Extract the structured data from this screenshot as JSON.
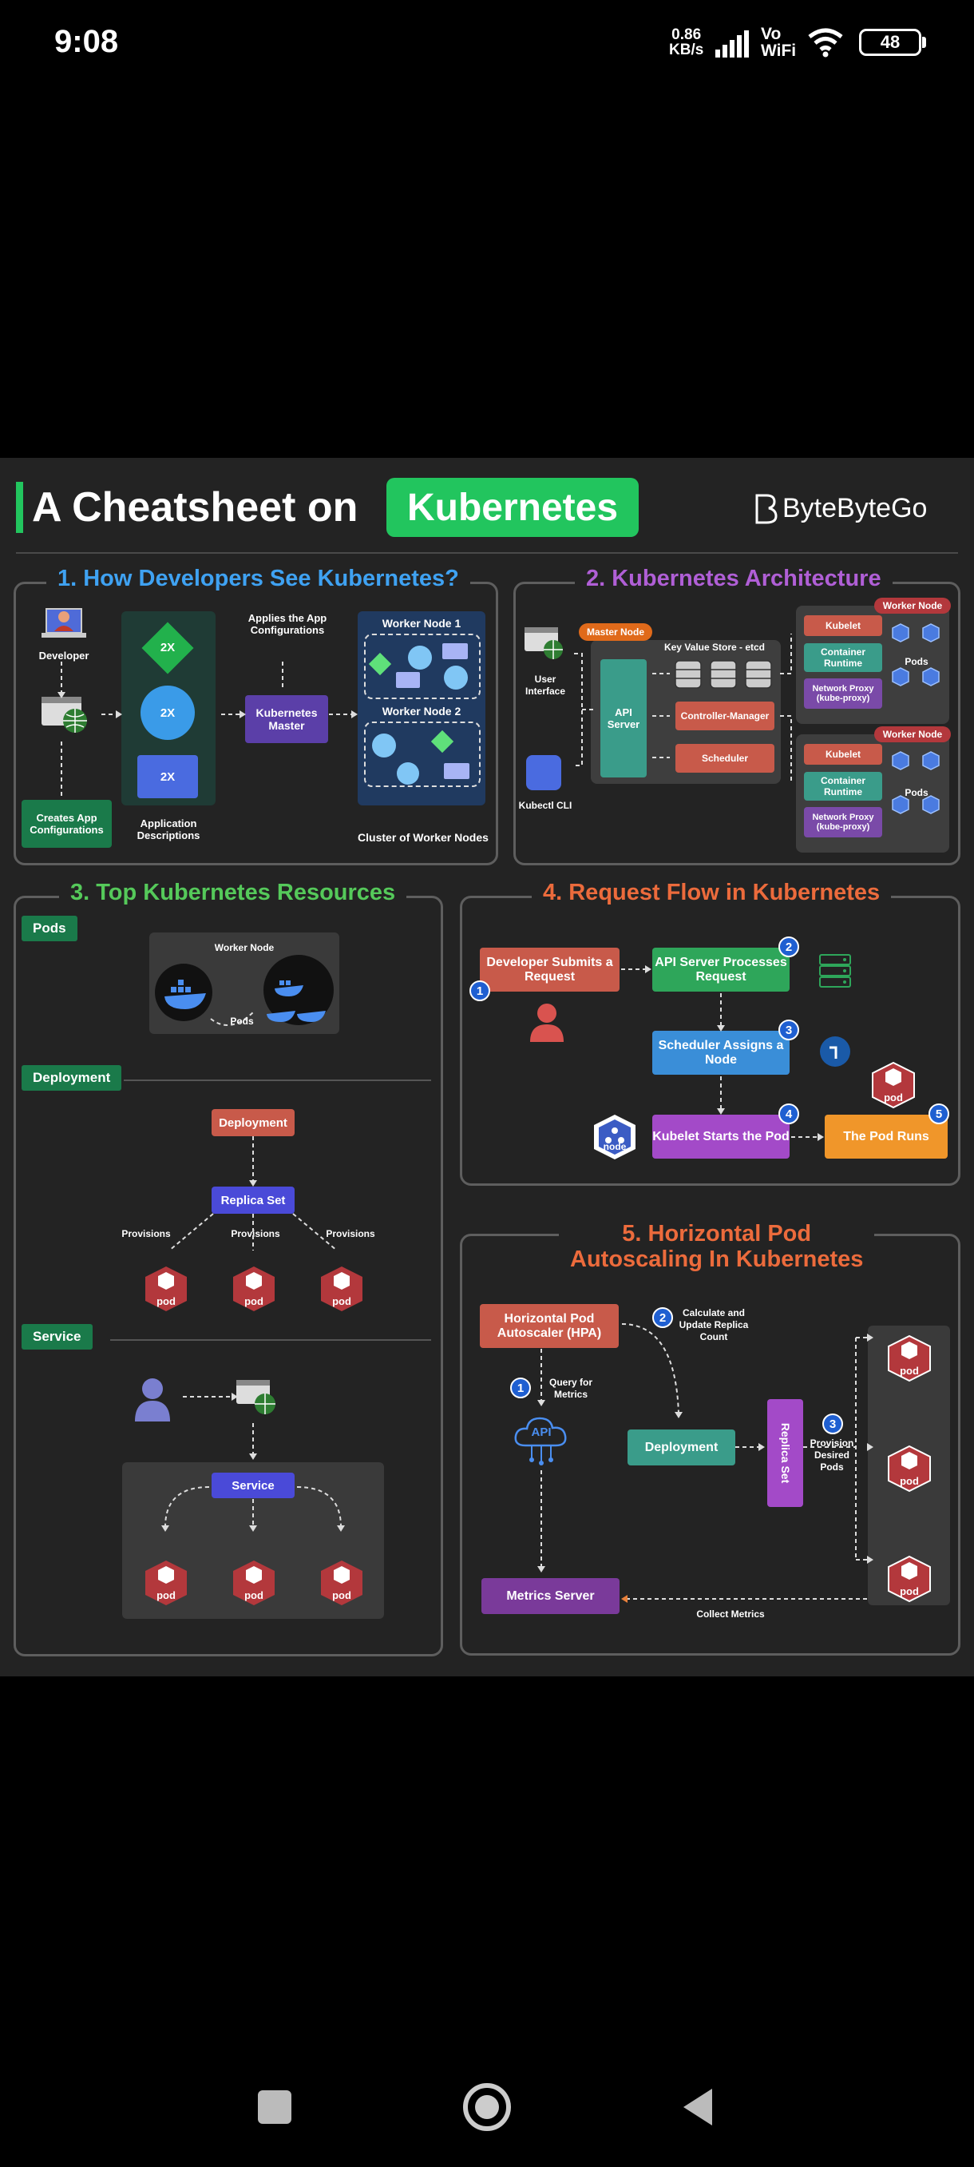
{
  "status_bar": {
    "time": "9:08",
    "net_speed_value": "0.86",
    "net_speed_unit": "KB/s",
    "vo": "Vo",
    "wifi_label": "WiFi",
    "battery": "48"
  },
  "header": {
    "title_prefix": "A Cheatsheet on",
    "title_highlight": "Kubernetes",
    "brand": "ByteByteGo"
  },
  "s1": {
    "title": "1. How Developers See Kubernetes?",
    "developer": "Developer",
    "creates": "Creates App Configurations",
    "replica_2x": "2X",
    "app_desc": "Application Descriptions",
    "applies": "Applies the App Configurations",
    "master": "Kubernetes Master",
    "worker1": "Worker Node 1",
    "worker2": "Worker Node 2",
    "cluster": "Cluster of Worker Nodes"
  },
  "s2": {
    "title": "2. Kubernetes Architecture",
    "ui": "User Interface",
    "cli": "Kubectl CLI",
    "master_node": "Master Node",
    "kv": "Key Value Store - etcd",
    "api": "API Server",
    "cm": "Controller-Manager",
    "sched": "Scheduler",
    "worker_node": "Worker Node",
    "kubelet": "Kubelet",
    "runtime": "Container Runtime",
    "proxy": "Network Proxy (kube-proxy)",
    "pods": "Pods"
  },
  "s3": {
    "title": "3. Top Kubernetes Resources",
    "pods_tag": "Pods",
    "worker_node": "Worker Node",
    "pods": "Pods",
    "deployment_tag": "Deployment",
    "deployment": "Deployment",
    "replica_set": "Replica Set",
    "provisions": "Provisions",
    "pod": "pod",
    "service_tag": "Service",
    "service": "Service"
  },
  "s4": {
    "title": "4. Request Flow in Kubernetes",
    "step1": "Developer Submits a Request",
    "step2": "API Server Processes Request",
    "step3": "Scheduler Assigns a Node",
    "step4": "Kubelet Starts the Pod",
    "step5": "The Pod Runs",
    "node": "node",
    "pod": "pod",
    "n1": "1",
    "n2": "2",
    "n3": "3",
    "n4": "4",
    "n5": "5"
  },
  "s5": {
    "title_line1": "5. Horizontal Pod",
    "title_line2": "Autoscaling In Kubernetes",
    "hpa": "Horizontal Pod Autoscaler (HPA)",
    "calc": "Calculate and Update Replica Count",
    "query": "Query for Metrics",
    "api": "API",
    "deployment": "Deployment",
    "replica_set": "Replica Set",
    "provision": "Provision Desired Pods",
    "metrics": "Metrics Server",
    "collect": "Collect Metrics",
    "pod": "pod",
    "n1": "1",
    "n2": "2",
    "n3": "3"
  },
  "colors": {
    "accent_green": "#22c55e",
    "blue_title": "#3fa2f2",
    "purple_title": "#b05fd6",
    "green_title": "#55c95a",
    "orange_title": "#ec6b3c",
    "pod_red": "#b3383c"
  }
}
